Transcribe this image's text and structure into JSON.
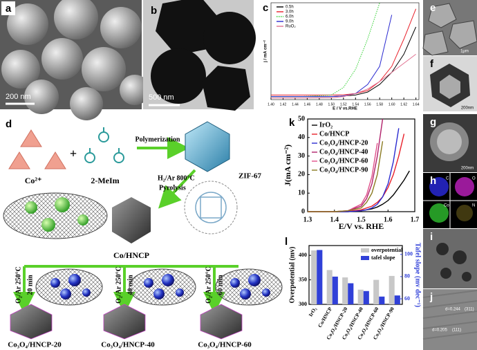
{
  "figure": {
    "panel_labels": [
      "a",
      "b",
      "c",
      "d",
      "e",
      "f",
      "g",
      "h",
      "i",
      "j",
      "k",
      "l"
    ],
    "scale_bars": {
      "a": "200 nm",
      "b": "500 nm",
      "e": "1μm",
      "f": "200nm",
      "g": "200nm"
    },
    "h_channels": [
      "C",
      "O",
      "Co",
      "N"
    ],
    "j_annotations": [
      "d=0.244",
      "(311)",
      "d=0.205",
      "(111)"
    ],
    "scheme": {
      "ion": "Co²⁺",
      "plus": "+",
      "ligand": "2-MeIm",
      "step1": "Polymerization",
      "framework": "ZIF-67",
      "step2_condition": "H₂/Ar 800°C",
      "step2": "Pyrolysis",
      "intermediate": "Co/HNCP",
      "oxidation": [
        {
          "condition": "O₂/Ar 250°C",
          "time": "20 min",
          "product": "Co₃O₄/HNCP-20"
        },
        {
          "condition": "O₂/Ar 250°C",
          "time": "40 min",
          "product": "Co₃O₄/HNCP-40"
        },
        {
          "condition": "O₂/Ar 250°C",
          "time": "60 min",
          "product": "Co₃O₄/HNCP-60"
        }
      ]
    }
  },
  "chart_data": [
    {
      "type": "line",
      "xlabel": "E / V vs.RHE",
      "ylabel": "j / mA cm⁻²",
      "x": [
        1.4,
        1.45,
        1.5,
        1.52,
        1.54,
        1.56,
        1.58,
        1.6,
        1.62,
        1.64
      ],
      "xlim": [
        1.4,
        1.645
      ],
      "xticks": [
        {
          "value": 1.4,
          "label": "1.40"
        },
        1.42,
        1.44,
        1.46,
        1.48,
        {
          "value": 1.5,
          "label": "1.50"
        },
        1.52,
        1.54,
        1.56,
        1.58,
        {
          "value": 1.6,
          "label": "1.60"
        },
        1.62,
        1.64
      ],
      "ylim": [
        0,
        32
      ],
      "legend": "upper left",
      "series": [
        {
          "name": "0.5h",
          "color": "#000000",
          "values": [
            1,
            1,
            1,
            1.2,
            1.5,
            2.5,
            5,
            9,
            15,
            24
          ]
        },
        {
          "name": "3.0h",
          "color": "#e8202a",
          "values": [
            1.5,
            1.5,
            1.5,
            1.6,
            2,
            3,
            6,
            11,
            20,
            30
          ]
        },
        {
          "name": "6.0h",
          "color": "#2fd02f",
          "linestyle": "dotted",
          "values": [
            1,
            1,
            1.5,
            4,
            10,
            20,
            32,
            null,
            null,
            null
          ]
        },
        {
          "name": "9.0h",
          "color": "#2a2ad0",
          "values": [
            1,
            1,
            1,
            1.2,
            2,
            5,
            11,
            28,
            null,
            null
          ]
        },
        {
          "name": "RuO₂",
          "color": "#e07090",
          "values": [
            0.5,
            0.5,
            0.6,
            1,
            2,
            3.5,
            6,
            9,
            12,
            15
          ]
        }
      ]
    },
    {
      "type": "line",
      "xlabel": "E/V vs. RHE",
      "ylabel": "J(mA cm⁻²)",
      "x": [
        1.3,
        1.4,
        1.45,
        1.5,
        1.52,
        1.54,
        1.56,
        1.58,
        1.6,
        1.62,
        1.64,
        1.66,
        1.68
      ],
      "xlim": [
        1.3,
        1.7
      ],
      "xticks": [
        1.3,
        1.4,
        1.5,
        1.6,
        1.7
      ],
      "ylim": [
        0,
        50
      ],
      "yticks": [
        0,
        10,
        20,
        30,
        40,
        50
      ],
      "legend": "upper left",
      "series": [
        {
          "name": "IrO₂",
          "color": "#000000",
          "values": [
            0,
            0,
            0,
            0.5,
            1,
            1.5,
            2.5,
            4,
            6,
            9,
            13,
            17,
            22
          ]
        },
        {
          "name": "Co/HNCP",
          "color": "#e8202a",
          "values": [
            0,
            0,
            0.2,
            1,
            2,
            3,
            5,
            8,
            13,
            20,
            30,
            42,
            null
          ]
        },
        {
          "name": "Co₃O₄/HNCP-20",
          "color": "#2a2ad0",
          "values": [
            0,
            0,
            0,
            0.5,
            1,
            2,
            4,
            8,
            15,
            27,
            45,
            null,
            null
          ]
        },
        {
          "name": "Co₃O₄/HNCP-40",
          "color": "#b0206a",
          "values": [
            0,
            0,
            0.5,
            3,
            7,
            15,
            30,
            50,
            null,
            null,
            null,
            null,
            null
          ]
        },
        {
          "name": "Co₃O₄/HNCP-60",
          "color": "#e0508a",
          "values": [
            0,
            0,
            0.5,
            4,
            9,
            19,
            37,
            null,
            null,
            null,
            null,
            null,
            null
          ]
        },
        {
          "name": "Co₃O₄/HNCP-90",
          "color": "#8a7a20",
          "values": [
            0,
            0,
            0.5,
            2,
            5,
            10,
            20,
            38,
            null,
            null,
            null,
            null,
            null
          ]
        }
      ]
    },
    {
      "type": "bar",
      "ylabel": "Overpotential (mv)",
      "y2label": "Tafel slope (mv dec⁻¹)",
      "categories": [
        "IrO₂",
        "Co/HNCP",
        "Co₃O₄/HNCP-20",
        "Co₃O₄/HNCP-40",
        "Co₃O₄/HNCP-60",
        "Co₃O₄/HNCP-90"
      ],
      "ylim": [
        300,
        420
      ],
      "yticks": [
        300,
        350,
        400
      ],
      "y2lim": [
        55,
        108
      ],
      "y2ticks": [
        60,
        80,
        100
      ],
      "legend": "upper right",
      "series": [
        {
          "name": "overpotential",
          "color": "#c8c8c8",
          "values": [
            410,
            370,
            355,
            330,
            350,
            358
          ]
        },
        {
          "name": "tafel slope",
          "color": "#3040d8",
          "axis": "y2",
          "values": [
            104,
            80,
            74,
            67,
            62,
            63
          ]
        }
      ]
    }
  ]
}
